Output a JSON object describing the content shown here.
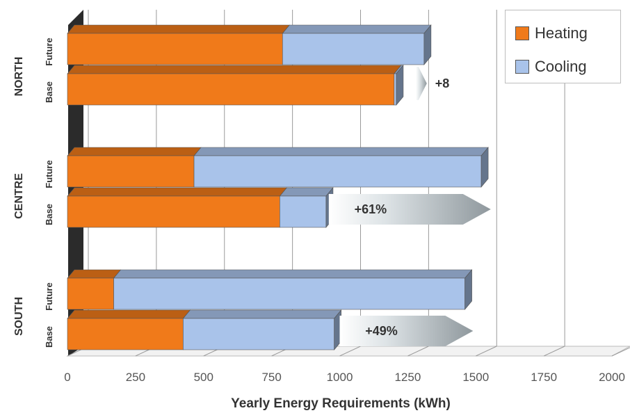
{
  "chart_data": {
    "type": "bar",
    "orientation": "horizontal",
    "stacked": true,
    "three_d": true,
    "xlabel": "Yearly Energy Requirements (kWh)",
    "xlim": [
      0,
      2000
    ],
    "xticks": [
      0,
      250,
      500,
      750,
      1000,
      1250,
      1500,
      1750,
      2000
    ],
    "grid": "vertical",
    "legend_position": "top-right",
    "groups": [
      {
        "name": "NORTH",
        "bars": [
          {
            "label": "Future",
            "heating": 790,
            "cooling": 520
          },
          {
            "label": "Base",
            "heating": 1200,
            "cooling": 8
          }
        ]
      },
      {
        "name": "CENTRE",
        "bars": [
          {
            "label": "Future",
            "heating": 465,
            "cooling": 1055
          },
          {
            "label": "Base",
            "heating": 780,
            "cooling": 170
          }
        ]
      },
      {
        "name": "SOUTH",
        "bars": [
          {
            "label": "Future",
            "heating": 170,
            "cooling": 1290
          },
          {
            "label": "Base",
            "heating": 425,
            "cooling": 555
          }
        ]
      }
    ],
    "series": [
      {
        "name": "Heating",
        "color": "#f07a1a"
      },
      {
        "name": "Cooling",
        "color": "#a9c3ea"
      }
    ],
    "annotations": [
      {
        "group": "NORTH",
        "text": "+8",
        "arrow_from": 1280,
        "arrow_to": 1320
      },
      {
        "group": "CENTRE",
        "text": "+61%",
        "arrow_from": 960,
        "arrow_to": 1555
      },
      {
        "group": "SOUTH",
        "text": "+49%",
        "arrow_from": 1000,
        "arrow_to": 1490
      }
    ]
  }
}
